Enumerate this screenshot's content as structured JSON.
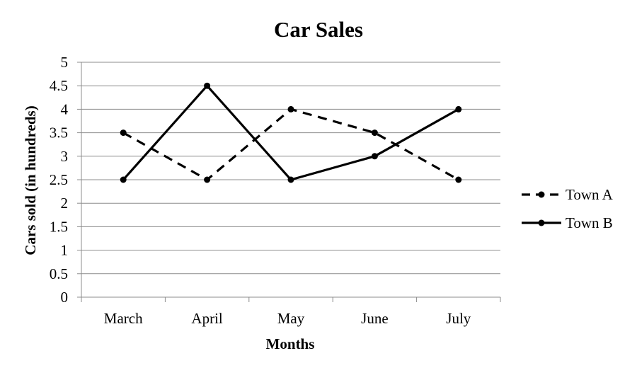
{
  "chart_data": {
    "type": "line",
    "title": "Car Sales",
    "xlabel": "Months",
    "ylabel": "Cars sold (in hundreds)",
    "categories": [
      "March",
      "April",
      "May",
      "June",
      "July"
    ],
    "ylim": [
      0,
      5
    ],
    "yticks": [
      "0",
      "0.5",
      "1",
      "1.5",
      "2",
      "2.5",
      "3",
      "3.5",
      "4",
      "4.5",
      "5"
    ],
    "grid": true,
    "legend_position": "right",
    "series": [
      {
        "name": "Town A",
        "values": [
          3.5,
          2.5,
          4,
          3.5,
          2.5
        ],
        "line_style": "dashed",
        "color": "#000000"
      },
      {
        "name": "Town B",
        "values": [
          2.5,
          4.5,
          2.5,
          3,
          4
        ],
        "line_style": "solid",
        "color": "#000000"
      }
    ]
  }
}
